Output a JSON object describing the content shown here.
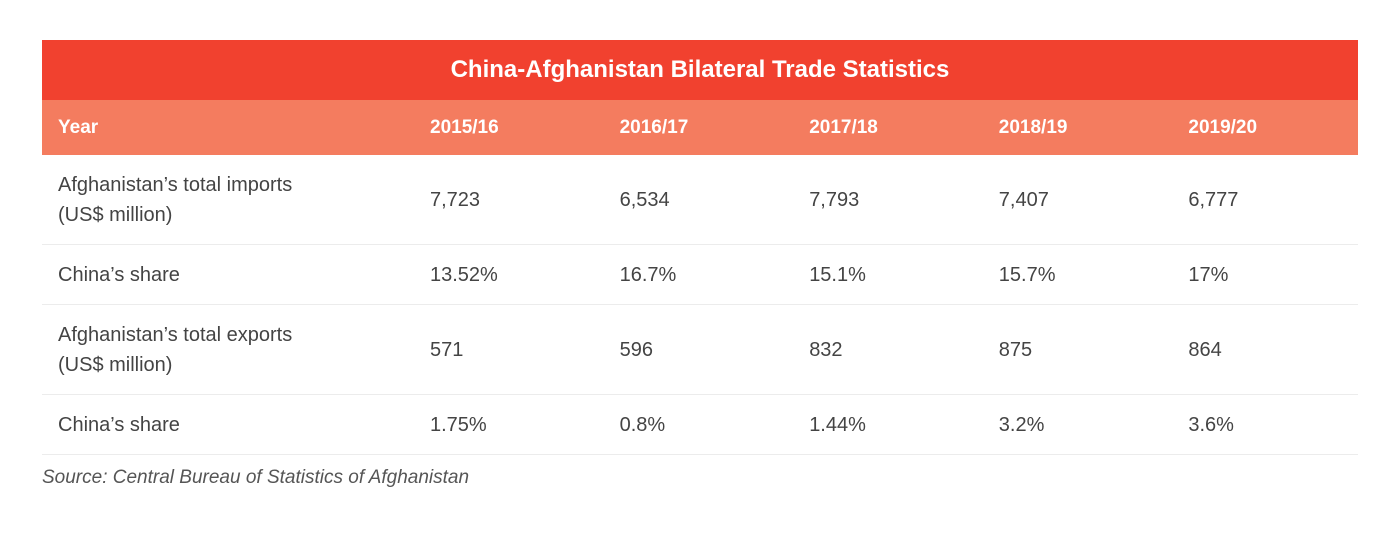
{
  "title": "China-Afghanistan Bilateral Trade Statistics",
  "table": {
    "header": [
      "Year",
      "2015/16",
      "2016/17",
      "2017/18",
      "2018/19",
      "2019/20"
    ],
    "rows": [
      [
        "Afghanistan’s total imports (US$ million)",
        "7,723",
        "6,534",
        "7,793",
        "7,407",
        "6,777"
      ],
      [
        "China’s share",
        "13.52%",
        "16.7%",
        "15.1%",
        "15.7%",
        "17%"
      ],
      [
        "Afghanistan’s total exports (US$ million)",
        "571",
        "596",
        "832",
        "875",
        "864"
      ],
      [
        "China’s share",
        "1.75%",
        "0.8%",
        "1.44%",
        "3.2%",
        "3.6%"
      ]
    ]
  },
  "source": "Source: Central Bureau of Statistics of Afghanistan"
}
